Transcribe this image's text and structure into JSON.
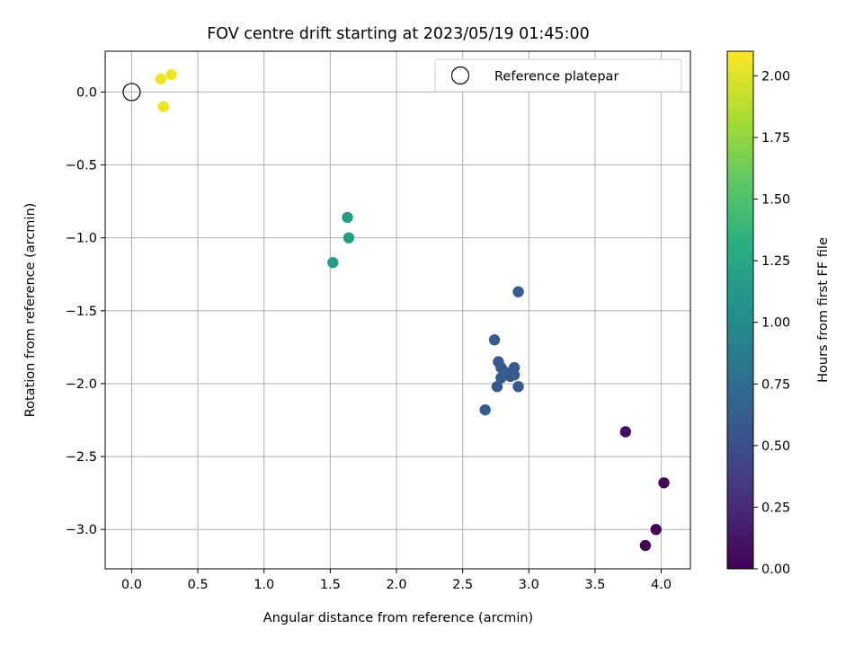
{
  "chart_data": {
    "type": "scatter",
    "title": "FOV centre drift starting at 2023/05/19 01:45:00",
    "xlabel": "Angular distance from reference (arcmin)",
    "ylabel": "Rotation from reference (arcmin)",
    "xlim": [
      -0.2,
      4.22
    ],
    "ylim": [
      -3.27,
      0.28
    ],
    "xticks": [
      0.0,
      0.5,
      1.0,
      1.5,
      2.0,
      2.5,
      3.0,
      3.5,
      4.0
    ],
    "xtick_labels": [
      "0.0",
      "0.5",
      "1.0",
      "1.5",
      "2.0",
      "2.5",
      "3.0",
      "3.5",
      "4.0"
    ],
    "yticks": [
      0.0,
      -0.5,
      -1.0,
      -1.5,
      -2.0,
      -2.5,
      -3.0
    ],
    "ytick_labels": [
      "0.0",
      "−0.5",
      "−1.0",
      "−1.5",
      "−2.0",
      "−2.5",
      "−3.0"
    ],
    "grid": true,
    "legend_position": "top-right",
    "reference": {
      "name": "Reference platepar",
      "x": 0.0,
      "y": 0.0
    },
    "colorbar": {
      "label": "Hours from first FF file",
      "range": [
        0.0,
        2.1
      ],
      "ticks": [
        0.0,
        0.25,
        0.5,
        0.75,
        1.0,
        1.25,
        1.5,
        1.75,
        2.0
      ],
      "tick_labels": [
        "0.00",
        "0.25",
        "0.50",
        "0.75",
        "1.00",
        "1.25",
        "1.50",
        "1.75",
        "2.00"
      ],
      "colormap": "viridis"
    },
    "points": [
      {
        "x": 3.88,
        "y": -3.11,
        "t": 0.0
      },
      {
        "x": 3.96,
        "y": -3.0,
        "t": 0.02
      },
      {
        "x": 4.02,
        "y": -2.68,
        "t": 0.04
      },
      {
        "x": 3.73,
        "y": -2.33,
        "t": 0.06
      },
      {
        "x": 2.67,
        "y": -2.18,
        "t": 0.6
      },
      {
        "x": 2.76,
        "y": -2.02,
        "t": 0.6
      },
      {
        "x": 2.92,
        "y": -2.02,
        "t": 0.6
      },
      {
        "x": 2.79,
        "y": -1.96,
        "t": 0.6
      },
      {
        "x": 2.86,
        "y": -1.95,
        "t": 0.6
      },
      {
        "x": 2.89,
        "y": -1.94,
        "t": 0.6
      },
      {
        "x": 2.82,
        "y": -1.92,
        "t": 0.6
      },
      {
        "x": 2.89,
        "y": -1.89,
        "t": 0.6
      },
      {
        "x": 2.79,
        "y": -1.89,
        "t": 0.6
      },
      {
        "x": 2.77,
        "y": -1.85,
        "t": 0.6
      },
      {
        "x": 2.74,
        "y": -1.7,
        "t": 0.6
      },
      {
        "x": 2.92,
        "y": -1.37,
        "t": 0.6
      },
      {
        "x": 1.52,
        "y": -1.17,
        "t": 1.18
      },
      {
        "x": 1.64,
        "y": -1.0,
        "t": 1.18
      },
      {
        "x": 1.63,
        "y": -0.86,
        "t": 1.18
      },
      {
        "x": 0.24,
        "y": -0.1,
        "t": 2.05
      },
      {
        "x": 0.22,
        "y": 0.09,
        "t": 2.05
      },
      {
        "x": 0.3,
        "y": 0.12,
        "t": 2.05
      }
    ]
  }
}
